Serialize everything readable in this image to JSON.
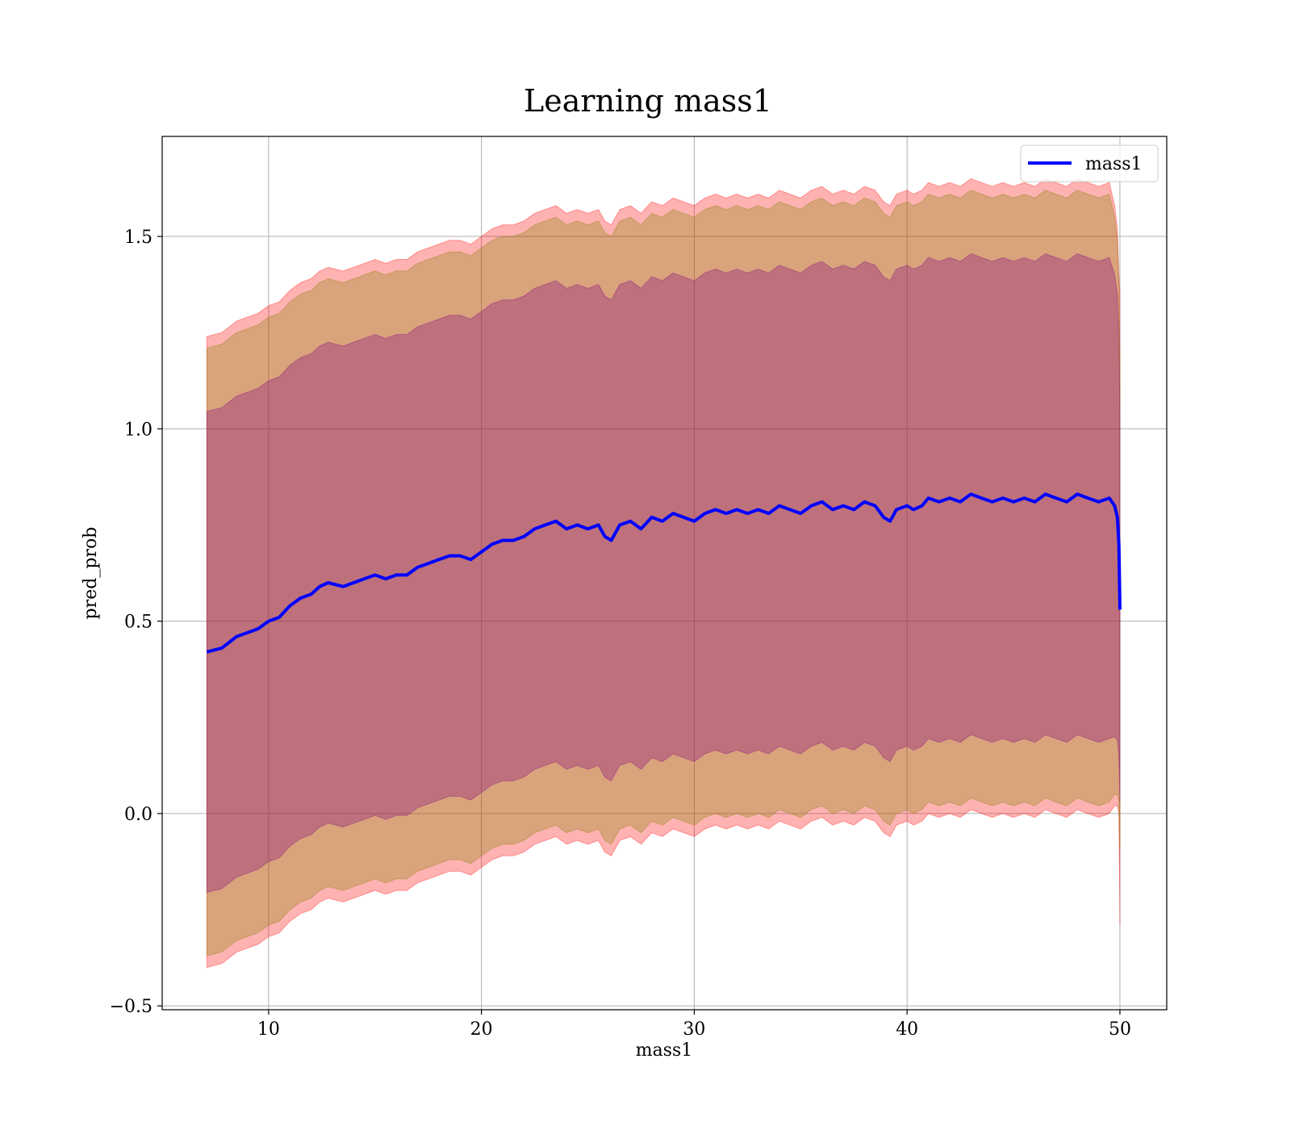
{
  "chart_data": {
    "type": "line",
    "title": "Learning mass1",
    "xlabel": "mass1",
    "ylabel": "pred_prob",
    "xlim": [
      5,
      52.2
    ],
    "ylim": [
      -0.51,
      1.76
    ],
    "xticks": [
      10,
      20,
      30,
      40,
      50
    ],
    "xtick_labels": [
      "10",
      "20",
      "30",
      "40",
      "50"
    ],
    "yticks": [
      -0.5,
      0.0,
      0.5,
      1.0,
      1.5
    ],
    "ytick_labels": [
      "−0.5",
      "0.0",
      "0.5",
      "1.0",
      "1.5"
    ],
    "grid": true,
    "legend_position": "top-right",
    "series": [
      {
        "name": "mass1",
        "color": "#0000ff",
        "x": [
          7.1,
          7.8,
          8.5,
          9.0,
          9.5,
          10.0,
          10.5,
          11.0,
          11.5,
          12.0,
          12.4,
          12.8,
          13.5,
          14.0,
          14.5,
          15.0,
          15.5,
          16.0,
          16.5,
          17.0,
          17.5,
          18.0,
          18.5,
          19.0,
          19.5,
          20.0,
          20.5,
          21.0,
          21.5,
          22.0,
          22.5,
          23.0,
          23.5,
          24.0,
          24.5,
          25.0,
          25.5,
          25.8,
          26.1,
          26.5,
          27.0,
          27.5,
          28.0,
          28.5,
          29.0,
          29.5,
          30.0,
          30.5,
          31.0,
          31.5,
          32.0,
          32.5,
          33.0,
          33.5,
          34.0,
          34.5,
          35.0,
          35.5,
          36.0,
          36.5,
          37.0,
          37.5,
          38.0,
          38.5,
          38.9,
          39.2,
          39.5,
          40.0,
          40.3,
          40.7,
          41.0,
          41.5,
          42.0,
          42.5,
          43.0,
          43.5,
          44.0,
          44.5,
          45.0,
          45.5,
          46.0,
          46.5,
          47.0,
          47.5,
          48.0,
          48.5,
          49.0,
          49.5,
          49.75,
          49.88,
          49.95,
          50.0
        ],
        "values": [
          0.42,
          0.43,
          0.46,
          0.47,
          0.48,
          0.5,
          0.51,
          0.54,
          0.56,
          0.57,
          0.59,
          0.6,
          0.59,
          0.6,
          0.61,
          0.62,
          0.61,
          0.62,
          0.62,
          0.64,
          0.65,
          0.66,
          0.67,
          0.67,
          0.66,
          0.68,
          0.7,
          0.71,
          0.71,
          0.72,
          0.74,
          0.75,
          0.76,
          0.74,
          0.75,
          0.74,
          0.75,
          0.72,
          0.71,
          0.75,
          0.76,
          0.74,
          0.77,
          0.76,
          0.78,
          0.77,
          0.76,
          0.78,
          0.79,
          0.78,
          0.79,
          0.78,
          0.79,
          0.78,
          0.8,
          0.79,
          0.78,
          0.8,
          0.81,
          0.79,
          0.8,
          0.79,
          0.81,
          0.8,
          0.77,
          0.76,
          0.79,
          0.8,
          0.79,
          0.8,
          0.82,
          0.81,
          0.82,
          0.81,
          0.83,
          0.82,
          0.81,
          0.82,
          0.81,
          0.82,
          0.81,
          0.83,
          0.82,
          0.81,
          0.83,
          0.82,
          0.81,
          0.82,
          0.8,
          0.77,
          0.7,
          0.53
        ]
      }
    ],
    "bands": [
      {
        "sigma": 3,
        "color": "#ff0000",
        "opacity": 0.3,
        "half_width": [
          0.82,
          0.82,
          0.82,
          0.82,
          0.82,
          0.82,
          0.82,
          0.82,
          0.82,
          0.82,
          0.82,
          0.82,
          0.82,
          0.82,
          0.82,
          0.82,
          0.82,
          0.82,
          0.82,
          0.82,
          0.82,
          0.82,
          0.82,
          0.82,
          0.82,
          0.82,
          0.82,
          0.82,
          0.82,
          0.82,
          0.82,
          0.82,
          0.82,
          0.82,
          0.82,
          0.82,
          0.82,
          0.82,
          0.82,
          0.82,
          0.82,
          0.82,
          0.82,
          0.82,
          0.82,
          0.82,
          0.82,
          0.82,
          0.82,
          0.82,
          0.82,
          0.82,
          0.82,
          0.82,
          0.82,
          0.82,
          0.82,
          0.82,
          0.82,
          0.82,
          0.82,
          0.82,
          0.82,
          0.82,
          0.82,
          0.82,
          0.82,
          0.82,
          0.82,
          0.82,
          0.82,
          0.82,
          0.82,
          0.82,
          0.82,
          0.82,
          0.82,
          0.82,
          0.82,
          0.82,
          0.82,
          0.82,
          0.82,
          0.82,
          0.82,
          0.82,
          0.82,
          0.82,
          0.78,
          0.75,
          0.7,
          0.82
        ]
      },
      {
        "sigma": 2,
        "color": "#808000",
        "opacity": 0.3,
        "half_width": [
          0.79,
          0.79,
          0.79,
          0.79,
          0.79,
          0.79,
          0.79,
          0.79,
          0.79,
          0.79,
          0.79,
          0.79,
          0.79,
          0.79,
          0.79,
          0.79,
          0.79,
          0.79,
          0.79,
          0.79,
          0.79,
          0.79,
          0.79,
          0.79,
          0.79,
          0.79,
          0.79,
          0.79,
          0.79,
          0.79,
          0.79,
          0.79,
          0.79,
          0.79,
          0.79,
          0.79,
          0.79,
          0.79,
          0.79,
          0.79,
          0.79,
          0.79,
          0.79,
          0.79,
          0.79,
          0.79,
          0.79,
          0.79,
          0.79,
          0.79,
          0.79,
          0.79,
          0.79,
          0.79,
          0.79,
          0.79,
          0.79,
          0.79,
          0.79,
          0.79,
          0.79,
          0.79,
          0.79,
          0.79,
          0.79,
          0.79,
          0.79,
          0.79,
          0.79,
          0.79,
          0.79,
          0.79,
          0.79,
          0.79,
          0.79,
          0.79,
          0.79,
          0.79,
          0.79,
          0.79,
          0.79,
          0.79,
          0.79,
          0.79,
          0.79,
          0.79,
          0.79,
          0.79,
          0.75,
          0.72,
          0.67,
          0.62
        ]
      },
      {
        "sigma": 1,
        "color": "#800080",
        "opacity": 0.3,
        "half_width": [
          0.625,
          0.625,
          0.625,
          0.625,
          0.625,
          0.625,
          0.625,
          0.625,
          0.625,
          0.625,
          0.625,
          0.625,
          0.625,
          0.625,
          0.625,
          0.625,
          0.625,
          0.625,
          0.625,
          0.625,
          0.625,
          0.625,
          0.625,
          0.625,
          0.625,
          0.625,
          0.625,
          0.625,
          0.625,
          0.625,
          0.625,
          0.625,
          0.625,
          0.625,
          0.625,
          0.625,
          0.625,
          0.625,
          0.625,
          0.625,
          0.625,
          0.625,
          0.625,
          0.625,
          0.625,
          0.625,
          0.625,
          0.625,
          0.625,
          0.625,
          0.625,
          0.625,
          0.625,
          0.625,
          0.625,
          0.625,
          0.625,
          0.625,
          0.625,
          0.625,
          0.625,
          0.625,
          0.625,
          0.625,
          0.625,
          0.625,
          0.625,
          0.625,
          0.625,
          0.625,
          0.625,
          0.625,
          0.625,
          0.625,
          0.625,
          0.625,
          0.625,
          0.625,
          0.625,
          0.625,
          0.625,
          0.625,
          0.625,
          0.625,
          0.625,
          0.625,
          0.625,
          0.625,
          0.6,
          0.58,
          0.55,
          0.5
        ]
      }
    ]
  }
}
